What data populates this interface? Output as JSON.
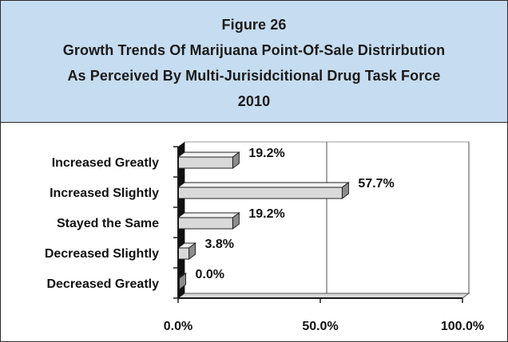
{
  "header": {
    "figure_label": "Figure 26",
    "title_line1": "Growth Trends Of Marijuana Point-Of-Sale Distrirbution",
    "title_line2": "As Perceived By Multi-Jurisidcitional Drug Task Force",
    "year": "2010"
  },
  "colors": {
    "header_bg": "#c6dcf0",
    "bar_fill": "#d9d9d9",
    "bar_side": "#8c8c8c",
    "axis": "#1a1a1a"
  },
  "chart_data": {
    "type": "bar",
    "orientation": "horizontal",
    "style": "3d",
    "title": "Figure 26 Growth Trends Of Marijuana Point-Of-Sale Distrirbution As Perceived By Multi-Jurisidcitional Drug Task Force 2010",
    "categories": [
      "Increased Greatly",
      "Increased Slightly",
      "Stayed the Same",
      "Decreased Slightly",
      "Decreased Greatly"
    ],
    "values": [
      19.2,
      57.7,
      19.2,
      3.8,
      0.0
    ],
    "value_labels": [
      "19.2%",
      "57.7%",
      "19.2%",
      "3.8%",
      "0.0%"
    ],
    "xlim": [
      0,
      100
    ],
    "x_ticks": [
      0,
      50,
      100
    ],
    "x_tick_labels": [
      "0.0%",
      "50.0%",
      "100.0%"
    ],
    "xlabel": "",
    "ylabel": "",
    "grid": "vertical"
  }
}
